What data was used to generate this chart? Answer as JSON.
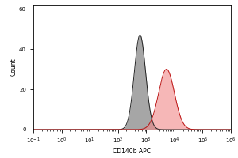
{
  "title": "",
  "xlabel": "CD140b APC",
  "ylabel": "Count",
  "xlim_log": [
    -1,
    6
  ],
  "ylim": [
    0,
    62
  ],
  "yticks": [
    0,
    20,
    40,
    60
  ],
  "background_color": "#ffffff",
  "gray_peak_log": 2.78,
  "gray_peak_height": 47,
  "gray_sigma": 0.2,
  "red_peak_log": 3.72,
  "red_peak_height": 30,
  "red_sigma": 0.28,
  "gray_fill_color": "#909090",
  "gray_edge_color": "#222222",
  "red_fill_color": "#f08888",
  "red_edge_color": "#bb1111",
  "fill_alpha_gray": 0.8,
  "fill_alpha_red": 0.6,
  "xlabel_fontsize": 5.5,
  "ylabel_fontsize": 5.5,
  "tick_labelsize": 5.0
}
